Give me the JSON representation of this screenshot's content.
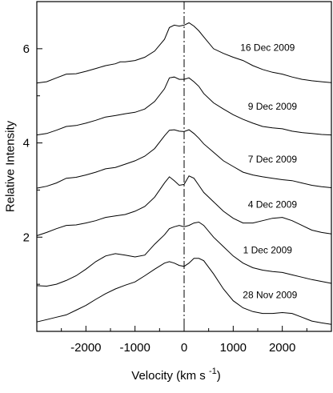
{
  "chart_data": {
    "type": "line",
    "title": "",
    "xlabel": "Velocity (km s",
    "xlabel_superscript": "-1",
    "xlabel_suffix": ")",
    "ylabel": "Relative Intensity",
    "xlim": [
      -3000,
      3000
    ],
    "ylim": [
      0,
      7.0
    ],
    "x_ticks": [
      -2000,
      -1000,
      0,
      1000,
      2000
    ],
    "x_tick_labels": [
      "-2000",
      "-1000",
      "0",
      "1000",
      "2000"
    ],
    "y_ticks": [
      2,
      4,
      6
    ],
    "y_tick_labels": [
      "2",
      "4",
      "6"
    ],
    "grid": false,
    "legend": "none",
    "reference_line": {
      "x": 0,
      "style": "dash-dot"
    },
    "series": [
      {
        "name": "16 Dec 2009",
        "label_x": 1700,
        "x": [
          -3000,
          -2800,
          -2600,
          -2400,
          -2200,
          -2000,
          -1800,
          -1600,
          -1400,
          -1300,
          -1200,
          -1000,
          -800,
          -600,
          -400,
          -300,
          -200,
          -100,
          0,
          100,
          200,
          300,
          400,
          600,
          800,
          1000,
          1200,
          1400,
          1600,
          1800,
          2000,
          2200,
          2400,
          2600,
          2800,
          3000
        ],
        "values": [
          5.27,
          5.3,
          5.38,
          5.46,
          5.47,
          5.52,
          5.58,
          5.64,
          5.68,
          5.72,
          5.72,
          5.75,
          5.82,
          5.95,
          6.2,
          6.45,
          6.5,
          6.48,
          6.5,
          6.55,
          6.48,
          6.38,
          6.25,
          6.0,
          5.9,
          5.82,
          5.75,
          5.64,
          5.56,
          5.5,
          5.46,
          5.4,
          5.35,
          5.32,
          5.3,
          5.28
        ]
      },
      {
        "name": "9 Dec 2009",
        "label_x": 1800,
        "x": [
          -3000,
          -2800,
          -2600,
          -2400,
          -2200,
          -2000,
          -1800,
          -1600,
          -1400,
          -1200,
          -1000,
          -800,
          -600,
          -400,
          -300,
          -200,
          -100,
          0,
          100,
          200,
          300,
          400,
          600,
          800,
          1000,
          1200,
          1400,
          1600,
          1800,
          2000,
          2200,
          2400,
          2600,
          2800,
          3000
        ],
        "values": [
          4.17,
          4.2,
          4.27,
          4.35,
          4.37,
          4.42,
          4.48,
          4.55,
          4.58,
          4.62,
          4.65,
          4.72,
          4.88,
          5.15,
          5.38,
          5.4,
          5.35,
          5.35,
          5.38,
          5.3,
          5.2,
          5.05,
          4.85,
          4.72,
          4.6,
          4.5,
          4.42,
          4.35,
          4.32,
          4.3,
          4.25,
          4.22,
          4.2,
          4.18,
          4.17
        ]
      },
      {
        "name": "7 Dec 2009",
        "label_x": 1800,
        "x": [
          -3000,
          -2800,
          -2600,
          -2400,
          -2200,
          -2000,
          -1800,
          -1600,
          -1400,
          -1200,
          -1000,
          -800,
          -600,
          -400,
          -300,
          -200,
          -100,
          0,
          100,
          200,
          300,
          400,
          600,
          800,
          1000,
          1200,
          1400,
          1600,
          1800,
          2000,
          2200,
          2400,
          2600,
          2800,
          3000
        ],
        "values": [
          3.04,
          3.08,
          3.15,
          3.25,
          3.27,
          3.32,
          3.38,
          3.45,
          3.48,
          3.55,
          3.62,
          3.72,
          3.88,
          4.15,
          4.27,
          4.28,
          4.25,
          4.24,
          4.28,
          4.2,
          4.1,
          3.98,
          3.8,
          3.62,
          3.5,
          3.38,
          3.32,
          3.28,
          3.25,
          3.22,
          3.2,
          3.15,
          3.1,
          3.07,
          3.05
        ]
      },
      {
        "name": "4 Dec 2009",
        "label_x": 1800,
        "x": [
          -3000,
          -2800,
          -2600,
          -2400,
          -2200,
          -2000,
          -1800,
          -1600,
          -1400,
          -1200,
          -1000,
          -800,
          -600,
          -400,
          -300,
          -200,
          -100,
          0,
          100,
          200,
          300,
          400,
          600,
          800,
          1000,
          1200,
          1400,
          1600,
          1800,
          2000,
          2200,
          2400,
          2600,
          2800,
          3000
        ],
        "values": [
          2.03,
          2.1,
          2.18,
          2.25,
          2.26,
          2.3,
          2.35,
          2.42,
          2.45,
          2.48,
          2.55,
          2.65,
          2.85,
          3.15,
          3.28,
          3.2,
          3.1,
          3.12,
          3.3,
          3.25,
          3.1,
          2.95,
          2.75,
          2.55,
          2.4,
          2.3,
          2.3,
          2.35,
          2.4,
          2.42,
          2.35,
          2.25,
          2.15,
          2.1,
          2.07
        ]
      },
      {
        "name": "1 Dec 2009",
        "label_x": 1700,
        "x": [
          -3000,
          -2800,
          -2600,
          -2400,
          -2200,
          -2000,
          -1800,
          -1600,
          -1400,
          -1200,
          -1000,
          -800,
          -600,
          -400,
          -300,
          -200,
          -100,
          0,
          100,
          200,
          300,
          400,
          600,
          800,
          1000,
          1200,
          1400,
          1600,
          1800,
          2000,
          2200,
          2400,
          2600,
          2800,
          3000
        ],
        "values": [
          0.97,
          0.96,
          1.0,
          1.08,
          1.18,
          1.32,
          1.48,
          1.6,
          1.65,
          1.62,
          1.58,
          1.62,
          1.85,
          2.05,
          2.18,
          2.22,
          2.25,
          2.22,
          2.25,
          2.3,
          2.32,
          2.25,
          2.0,
          1.8,
          1.6,
          1.45,
          1.35,
          1.3,
          1.27,
          1.25,
          1.2,
          1.15,
          1.1,
          1.06,
          1.02
        ]
      },
      {
        "name": "28 Nov 2009",
        "label_x": 1750,
        "x": [
          -3000,
          -2800,
          -2600,
          -2400,
          -2200,
          -2000,
          -1800,
          -1600,
          -1400,
          -1200,
          -1000,
          -800,
          -600,
          -400,
          -300,
          -200,
          -100,
          0,
          100,
          200,
          300,
          400,
          600,
          800,
          1000,
          1200,
          1400,
          1600,
          1800,
          2000,
          2200,
          2400,
          2600,
          2800,
          3000
        ],
        "values": [
          0.2,
          0.25,
          0.3,
          0.35,
          0.45,
          0.55,
          0.68,
          0.8,
          0.9,
          0.98,
          1.05,
          1.18,
          1.32,
          1.45,
          1.48,
          1.45,
          1.4,
          1.38,
          1.45,
          1.55,
          1.55,
          1.5,
          1.22,
          0.9,
          0.65,
          0.5,
          0.42,
          0.38,
          0.38,
          0.4,
          0.38,
          0.3,
          0.22,
          0.18,
          0.15
        ]
      }
    ]
  }
}
